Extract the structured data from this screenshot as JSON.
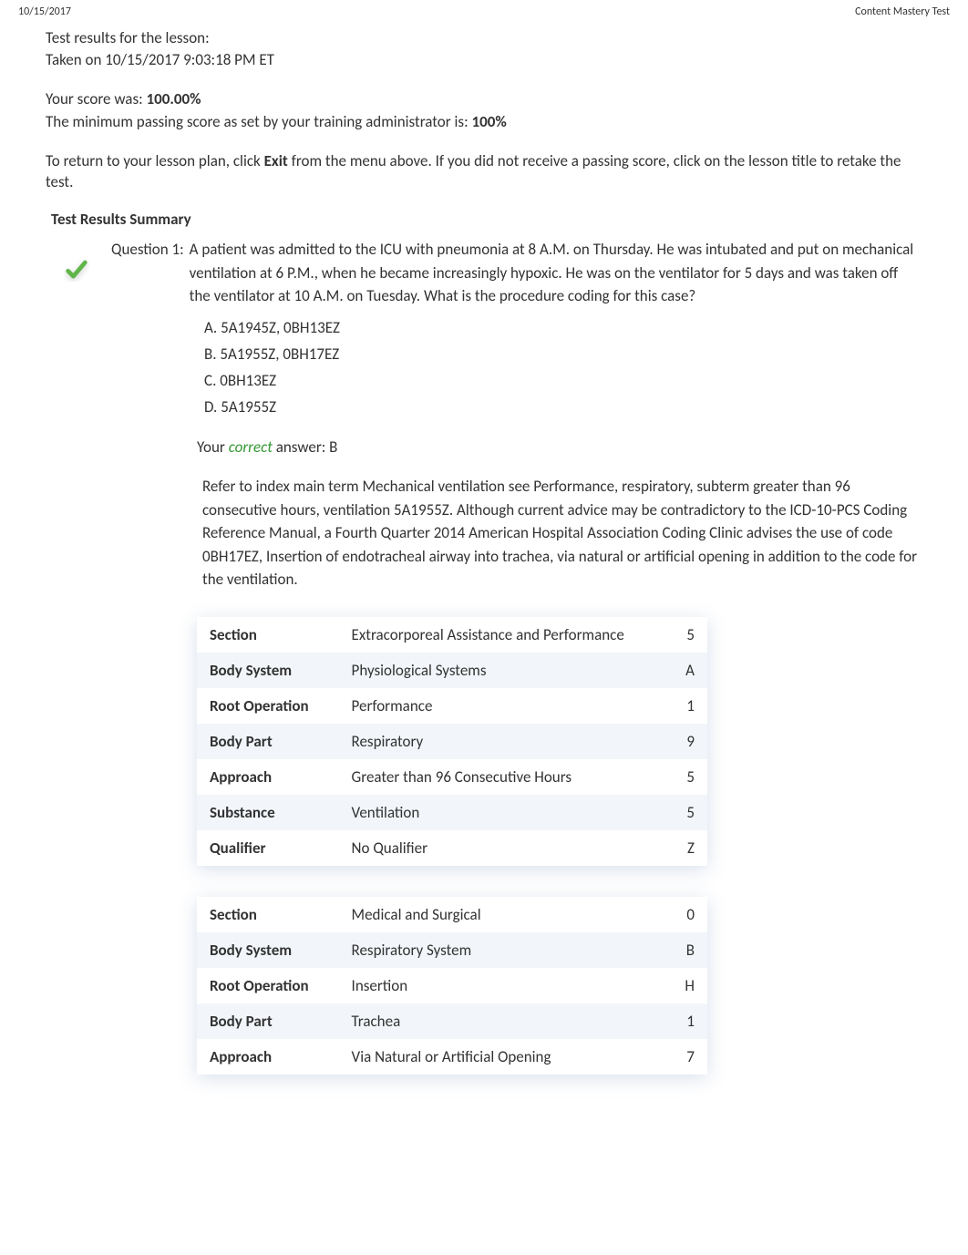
{
  "header": {
    "date": "10/15/2017",
    "title": "Content Mastery Test"
  },
  "intro": {
    "line1": "Test results for the lesson:",
    "line2": "Taken  on 10/15/2017 9:03:18 PM ET"
  },
  "score": {
    "label": "Your score was: ",
    "value": "100.00%",
    "minLabel": "The minimum passing score as set by your training administrator is: ",
    "minValue": "100%"
  },
  "instructions": {
    "part1": "To return to your lesson plan, click ",
    "exitWord": "Exit",
    "part2": " from the menu above. If you did not receive a passing score, click on the lesson title to retake the test."
  },
  "summaryTitle": "Test Results Summary",
  "question": {
    "label": "Question 1:",
    "text": "A patient was admitted to the ICU with pneumonia at 8 A.M. on Thursday. He was intubated and put on mechanical ventilation at 6 P.M., when he became increasingly hypoxic. He was on the ventilator for 5 days and was taken off the ventilator at 10 A.M. on Tuesday. What is the procedure coding for this case?",
    "options": [
      {
        "letter": "A.",
        "text": "5A1945Z,  0BH13EZ"
      },
      {
        "letter": "B.",
        "text": "5A1955Z,  0BH17EZ"
      },
      {
        "letter": "C.",
        "text": "0BH13EZ"
      },
      {
        "letter": "D.",
        "text": "5A1955Z"
      }
    ],
    "yourAnswer": {
      "prefix": "Your ",
      "correctWord": "correct",
      "suffix": " answer: B"
    },
    "explanation": "Refer to index main term Mechanical ventilation see Performance, respiratory, subterm greater than 96 consecutive hours, ventilation 5A1955Z. Although current advice may be contradictory to the ICD-10-PCS Coding Reference Manual, a Fourth Quarter 2014 American Hospital Association Coding Clinic advises the use of code 0BH17EZ, Insertion of endotracheal airway into trachea, via natural or artificial opening in addition to the code for the ventilation."
  },
  "table1": {
    "rows": [
      {
        "label": "Section",
        "desc": "Extracorporeal Assistance and Performance",
        "code": "5"
      },
      {
        "label": "Body System",
        "desc": "Physiological Systems",
        "code": "A"
      },
      {
        "label": "Root Operation",
        "desc": "Performance",
        "code": "1"
      },
      {
        "label": "Body Part",
        "desc": "Respiratory",
        "code": "9"
      },
      {
        "label": "Approach",
        "desc": "Greater than 96 Consecutive Hours",
        "code": "5"
      },
      {
        "label": "Substance",
        "desc": "Ventilation",
        "code": "5"
      },
      {
        "label": "Qualifier",
        "desc": "No Qualifier",
        "code": "Z"
      }
    ]
  },
  "table2": {
    "rows": [
      {
        "label": "Section",
        "desc": "Medical and Surgical",
        "code": "0"
      },
      {
        "label": "Body System",
        "desc": "Respiratory System",
        "code": "B"
      },
      {
        "label": "Root Operation",
        "desc": "Insertion",
        "code": "H"
      },
      {
        "label": "Body Part",
        "desc": "Trachea",
        "code": "1"
      },
      {
        "label": "Approach",
        "desc": "Via Natural or Artificial Opening",
        "code": "7"
      }
    ]
  },
  "colors": {
    "background": "#ffffff",
    "text": "#333333",
    "correct": "#339933",
    "tableEvenRow": "#f2f6fa",
    "checkmark": "#5fb548"
  }
}
